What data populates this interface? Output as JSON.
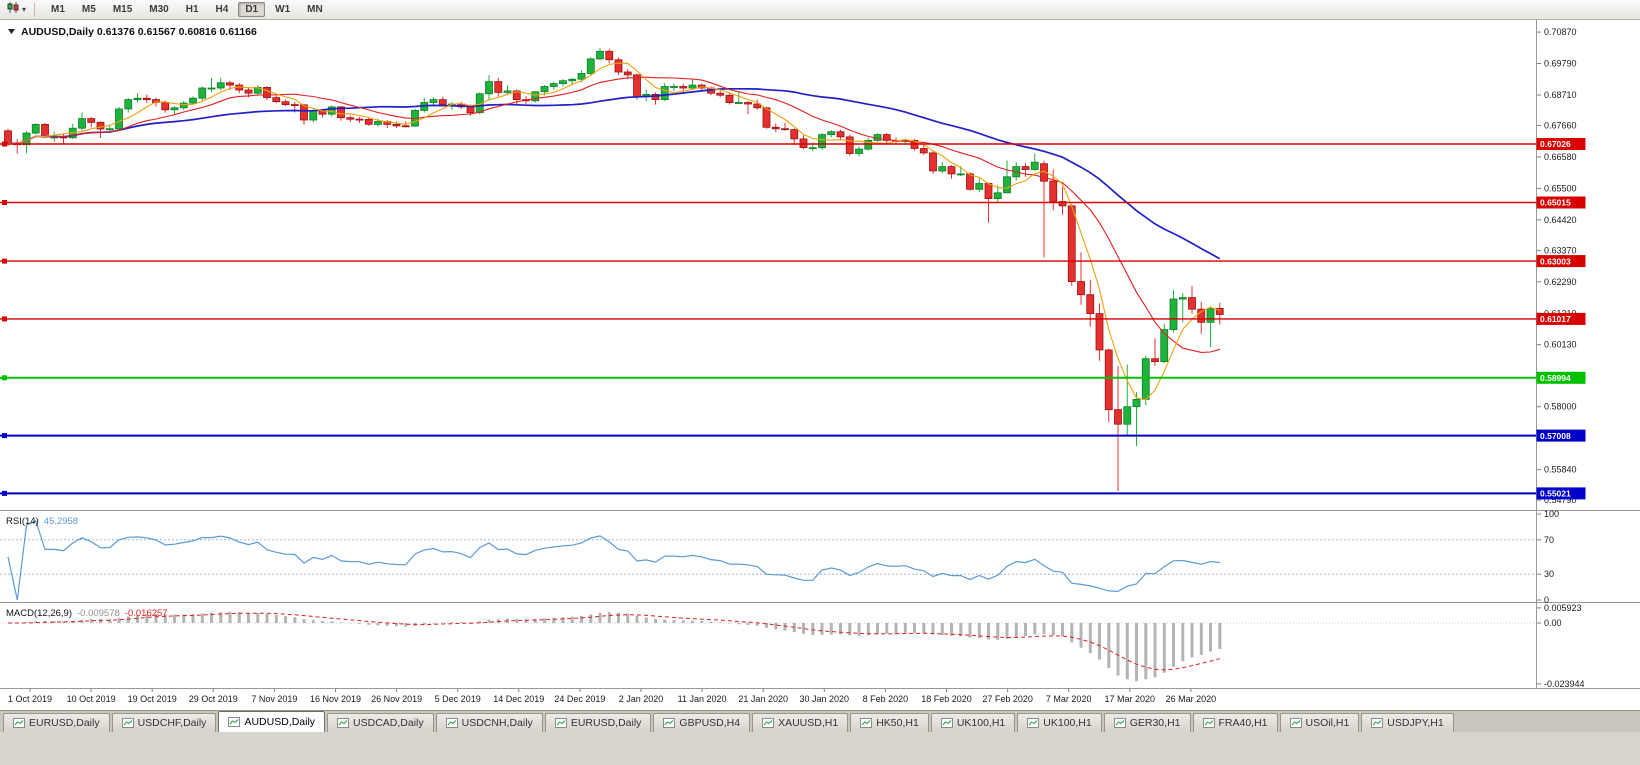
{
  "toolbar": {
    "chart_type_icon": "candlestick-chart-icon",
    "timeframes": [
      "M1",
      "M5",
      "M15",
      "M30",
      "H1",
      "H4",
      "D1",
      "W1",
      "MN"
    ],
    "active_timeframe": "D1"
  },
  "chart_header": {
    "dropdown_icon": "chart-dropdown-triangle",
    "symbol": "AUDUSD,Daily",
    "open": "0.61376",
    "high": "0.61567",
    "low": "0.60816",
    "close": "0.61166"
  },
  "price_axis": {
    "ticks": [
      "0.70870",
      "0.69790",
      "0.68710",
      "0.67660",
      "0.66580",
      "0.65500",
      "0.64420",
      "0.63370",
      "0.62290",
      "0.61210",
      "0.60130",
      "0.59080",
      "0.58000",
      "0.56920",
      "0.55840",
      "0.54790"
    ]
  },
  "hlines": [
    {
      "label": "0.67026",
      "value": 0.67026,
      "color": "#d80000",
      "width": 1.4
    },
    {
      "label": "0.65015",
      "value": 0.65015,
      "color": "#d80000",
      "width": 1.4
    },
    {
      "label": "0.63003",
      "value": 0.63003,
      "color": "#d80000",
      "width": 1.4
    },
    {
      "label": "0.61017",
      "value": 0.61017,
      "color": "#d80000",
      "width": 1.4
    },
    {
      "label": "0.58994",
      "value": 0.58994,
      "color": "#00c000",
      "width": 2
    },
    {
      "label": "0.57008",
      "value": 0.57008,
      "color": "#0000c8",
      "width": 2
    },
    {
      "label": "0.55021",
      "value": 0.55021,
      "color": "#0000c8",
      "width": 2
    }
  ],
  "indicators": {
    "rsi": {
      "name": "RSI(14)",
      "value": "45.2958",
      "period": 14,
      "color": "#5b9bd5",
      "levels": [
        70,
        30
      ],
      "scale": [
        "100",
        "70",
        "30",
        "0"
      ]
    },
    "macd": {
      "name": "MACD(12,26,9)",
      "values": [
        "-0.009578",
        "-0.016257"
      ],
      "fast": 12,
      "slow": 26,
      "signal": 9,
      "hist_color": "#b4b4b4",
      "signal_color": "#e02020",
      "scale": [
        "0.005923",
        "0.00",
        "-0.023944"
      ]
    }
  },
  "date_axis": {
    "labels": [
      "1 Oct 2019",
      "10 Oct 2019",
      "19 Oct 2019",
      "29 Oct 2019",
      "7 Nov 2019",
      "16 Nov 2019",
      "26 Nov 2019",
      "5 Dec 2019",
      "14 Dec 2019",
      "24 Dec 2019",
      "2 Jan 2020",
      "11 Jan 2020",
      "21 Jan 2020",
      "30 Jan 2020",
      "8 Feb 2020",
      "18 Feb 2020",
      "27 Feb 2020",
      "7 Mar 2020",
      "17 Mar 2020",
      "26 Mar 2020"
    ]
  },
  "tabs": {
    "active_index": 2,
    "items": [
      {
        "label": "EURUSD,Daily"
      },
      {
        "label": "USDCHF,Daily"
      },
      {
        "label": "AUDUSD,Daily"
      },
      {
        "label": "USDCAD,Daily"
      },
      {
        "label": "USDCNH,Daily"
      },
      {
        "label": "EURUSD,Daily"
      },
      {
        "label": "GBPUSD,H4"
      },
      {
        "label": "XAUUSD,H1"
      },
      {
        "label": "HK50,H1"
      },
      {
        "label": "UK100,H1"
      },
      {
        "label": "UK100,H1"
      },
      {
        "label": "GER30,H1"
      },
      {
        "label": "FRA40,H1"
      },
      {
        "label": "USOil,H1"
      },
      {
        "label": "USDJPY,H1"
      }
    ]
  },
  "chart_data": {
    "type": "candlestick",
    "symbol": "AUDUSD",
    "timeframe": "Daily",
    "ylim": [
      0.5452,
      0.7108
    ],
    "style": {
      "up_color": "#1fb33c",
      "up_border": "#0a7f28",
      "down_color": "#e53030",
      "down_border": "#a01010"
    },
    "moving_averages": [
      {
        "period": 34,
        "color": "#2020c8",
        "width": 1.7
      },
      {
        "period": 13,
        "color": "#e02020",
        "width": 1.1
      },
      {
        "period": 5,
        "color": "#f0a010",
        "width": 1.1
      }
    ],
    "ohlc": [
      [
        "2019-10-01",
        0.6748,
        0.6755,
        0.6695,
        0.6706
      ],
      [
        "2019-10-02",
        0.6706,
        0.6719,
        0.667,
        0.67
      ],
      [
        "2019-10-03",
        0.67,
        0.6747,
        0.6671,
        0.674
      ],
      [
        "2019-10-04",
        0.674,
        0.6774,
        0.6736,
        0.677
      ],
      [
        "2019-10-07",
        0.677,
        0.6775,
        0.6723,
        0.6727
      ],
      [
        "2019-10-08",
        0.6727,
        0.6745,
        0.671,
        0.6727
      ],
      [
        "2019-10-09",
        0.6727,
        0.6737,
        0.6701,
        0.6724
      ],
      [
        "2019-10-10",
        0.6724,
        0.6772,
        0.6719,
        0.6757
      ],
      [
        "2019-10-11",
        0.6757,
        0.6811,
        0.6748,
        0.679
      ],
      [
        "2019-10-14",
        0.679,
        0.6795,
        0.676,
        0.6777
      ],
      [
        "2019-10-15",
        0.6777,
        0.678,
        0.6724,
        0.6754
      ],
      [
        "2019-10-16",
        0.6754,
        0.677,
        0.6742,
        0.6755
      ],
      [
        "2019-10-17",
        0.6755,
        0.683,
        0.6751,
        0.6823
      ],
      [
        "2019-10-18",
        0.6823,
        0.686,
        0.681,
        0.6855
      ],
      [
        "2019-10-21",
        0.6855,
        0.6877,
        0.6845,
        0.686
      ],
      [
        "2019-10-22",
        0.686,
        0.6872,
        0.6843,
        0.6855
      ],
      [
        "2019-10-23",
        0.6855,
        0.6862,
        0.6831,
        0.6845
      ],
      [
        "2019-10-24",
        0.6845,
        0.6852,
        0.681,
        0.682
      ],
      [
        "2019-10-25",
        0.682,
        0.6832,
        0.6805,
        0.6827
      ],
      [
        "2019-10-28",
        0.6827,
        0.685,
        0.682,
        0.6843
      ],
      [
        "2019-10-29",
        0.6843,
        0.6866,
        0.6838,
        0.686
      ],
      [
        "2019-10-30",
        0.686,
        0.69,
        0.6851,
        0.6895
      ],
      [
        "2019-10-31",
        0.6895,
        0.693,
        0.688,
        0.6895
      ],
      [
        "2019-11-01",
        0.6895,
        0.693,
        0.6887,
        0.6913
      ],
      [
        "2019-11-04",
        0.6913,
        0.692,
        0.6888,
        0.6905
      ],
      [
        "2019-11-05",
        0.6905,
        0.6912,
        0.6877,
        0.6888
      ],
      [
        "2019-11-06",
        0.6888,
        0.6898,
        0.6863,
        0.6877
      ],
      [
        "2019-11-07",
        0.6877,
        0.6905,
        0.6867,
        0.6897
      ],
      [
        "2019-11-08",
        0.6897,
        0.6901,
        0.6853,
        0.6862
      ],
      [
        "2019-11-11",
        0.6862,
        0.687,
        0.6843,
        0.6848
      ],
      [
        "2019-11-12",
        0.6848,
        0.6855,
        0.6832,
        0.6838
      ],
      [
        "2019-11-13",
        0.6838,
        0.6847,
        0.6811,
        0.6837
      ],
      [
        "2019-11-14",
        0.6837,
        0.684,
        0.6769,
        0.6785
      ],
      [
        "2019-11-15",
        0.6785,
        0.6825,
        0.6777,
        0.6817
      ],
      [
        "2019-11-18",
        0.6817,
        0.682,
        0.6793,
        0.6805
      ],
      [
        "2019-11-19",
        0.6805,
        0.6835,
        0.6797,
        0.683
      ],
      [
        "2019-11-20",
        0.683,
        0.6833,
        0.6783,
        0.6793
      ],
      [
        "2019-11-21",
        0.6793,
        0.68,
        0.6777,
        0.6788
      ],
      [
        "2019-11-22",
        0.6788,
        0.6795,
        0.6775,
        0.6787
      ],
      [
        "2019-11-25",
        0.6787,
        0.6793,
        0.6765,
        0.677
      ],
      [
        "2019-11-26",
        0.677,
        0.679,
        0.6762,
        0.678
      ],
      [
        "2019-11-27",
        0.678,
        0.6785,
        0.6757,
        0.677
      ],
      [
        "2019-11-28",
        0.677,
        0.678,
        0.6758,
        0.6765
      ],
      [
        "2019-11-29",
        0.6765,
        0.678,
        0.676,
        0.6764
      ],
      [
        "2019-12-02",
        0.6764,
        0.6824,
        0.6762,
        0.6818
      ],
      [
        "2019-12-03",
        0.6818,
        0.6862,
        0.681,
        0.6845
      ],
      [
        "2019-12-04",
        0.6845,
        0.6863,
        0.6832,
        0.6855
      ],
      [
        "2019-12-05",
        0.6855,
        0.6865,
        0.6833,
        0.6838
      ],
      [
        "2019-12-06",
        0.6838,
        0.6848,
        0.682,
        0.684
      ],
      [
        "2019-12-09",
        0.684,
        0.6848,
        0.6823,
        0.683
      ],
      [
        "2019-12-10",
        0.683,
        0.6838,
        0.68,
        0.681
      ],
      [
        "2019-12-11",
        0.681,
        0.688,
        0.6805,
        0.6875
      ],
      [
        "2019-12-12",
        0.6875,
        0.6939,
        0.6855,
        0.6917
      ],
      [
        "2019-12-13",
        0.6917,
        0.693,
        0.6865,
        0.688
      ],
      [
        "2019-12-16",
        0.688,
        0.6905,
        0.687,
        0.6885
      ],
      [
        "2019-12-17",
        0.6885,
        0.689,
        0.6838,
        0.6855
      ],
      [
        "2019-12-18",
        0.6855,
        0.6867,
        0.684,
        0.6851
      ],
      [
        "2019-12-19",
        0.6851,
        0.6885,
        0.6845,
        0.6882
      ],
      [
        "2019-12-20",
        0.6882,
        0.6905,
        0.687,
        0.69
      ],
      [
        "2019-12-23",
        0.69,
        0.6917,
        0.689,
        0.691
      ],
      [
        "2019-12-24",
        0.691,
        0.6925,
        0.69,
        0.692
      ],
      [
        "2019-12-26",
        0.692,
        0.693,
        0.6905,
        0.6925
      ],
      [
        "2019-12-27",
        0.6925,
        0.6955,
        0.6915,
        0.6945
      ],
      [
        "2019-12-30",
        0.6945,
        0.7,
        0.694,
        0.6995
      ],
      [
        "2019-12-31",
        0.6995,
        0.7032,
        0.699,
        0.7021
      ],
      [
        "2020-01-02",
        0.7021,
        0.703,
        0.698,
        0.6992
      ],
      [
        "2020-01-03",
        0.6992,
        0.7,
        0.694,
        0.695
      ],
      [
        "2020-01-06",
        0.695,
        0.696,
        0.6925,
        0.694
      ],
      [
        "2020-01-07",
        0.694,
        0.6945,
        0.6855,
        0.6865
      ],
      [
        "2020-01-08",
        0.6865,
        0.689,
        0.685,
        0.6873
      ],
      [
        "2020-01-09",
        0.6873,
        0.688,
        0.6838,
        0.6855
      ],
      [
        "2020-01-10",
        0.6855,
        0.6912,
        0.685,
        0.69
      ],
      [
        "2020-01-13",
        0.69,
        0.691,
        0.6885,
        0.69
      ],
      [
        "2020-01-14",
        0.69,
        0.691,
        0.688,
        0.6895
      ],
      [
        "2020-01-15",
        0.6895,
        0.6925,
        0.6888,
        0.6905
      ],
      [
        "2020-01-16",
        0.6905,
        0.691,
        0.6885,
        0.6895
      ],
      [
        "2020-01-17",
        0.6895,
        0.69,
        0.687,
        0.6877
      ],
      [
        "2020-01-20",
        0.6877,
        0.6885,
        0.6863,
        0.687
      ],
      [
        "2020-01-21",
        0.687,
        0.6875,
        0.6838,
        0.6845
      ],
      [
        "2020-01-22",
        0.6845,
        0.688,
        0.684,
        0.6845
      ],
      [
        "2020-01-23",
        0.6845,
        0.685,
        0.6805,
        0.684
      ],
      [
        "2020-01-24",
        0.684,
        0.6855,
        0.682,
        0.6827
      ],
      [
        "2020-01-27",
        0.6827,
        0.683,
        0.6755,
        0.676
      ],
      [
        "2020-01-28",
        0.676,
        0.6773,
        0.6743,
        0.6755
      ],
      [
        "2020-01-29",
        0.6755,
        0.6775,
        0.6748,
        0.6752
      ],
      [
        "2020-01-30",
        0.6752,
        0.6757,
        0.67,
        0.672
      ],
      [
        "2020-01-31",
        0.672,
        0.6733,
        0.6685,
        0.669
      ],
      [
        "2020-02-03",
        0.669,
        0.6708,
        0.6678,
        0.669
      ],
      [
        "2020-02-04",
        0.669,
        0.674,
        0.6682,
        0.6735
      ],
      [
        "2020-02-05",
        0.6735,
        0.675,
        0.6725,
        0.6745
      ],
      [
        "2020-02-06",
        0.6745,
        0.6752,
        0.6715,
        0.6727
      ],
      [
        "2020-02-07",
        0.6727,
        0.6735,
        0.6663,
        0.667
      ],
      [
        "2020-02-10",
        0.667,
        0.6695,
        0.666,
        0.6685
      ],
      [
        "2020-02-11",
        0.6685,
        0.6725,
        0.668,
        0.6715
      ],
      [
        "2020-02-12",
        0.6715,
        0.674,
        0.671,
        0.6735
      ],
      [
        "2020-02-13",
        0.6735,
        0.674,
        0.67,
        0.6715
      ],
      [
        "2020-02-14",
        0.6715,
        0.6725,
        0.67,
        0.6712
      ],
      [
        "2020-02-17",
        0.6712,
        0.672,
        0.67,
        0.6715
      ],
      [
        "2020-02-18",
        0.6715,
        0.672,
        0.668,
        0.6687
      ],
      [
        "2020-02-19",
        0.6687,
        0.67,
        0.6665,
        0.6672
      ],
      [
        "2020-02-20",
        0.6672,
        0.6677,
        0.66,
        0.661
      ],
      [
        "2020-02-21",
        0.661,
        0.664,
        0.6603,
        0.6625
      ],
      [
        "2020-02-24",
        0.6625,
        0.663,
        0.6583,
        0.66
      ],
      [
        "2020-02-25",
        0.66,
        0.6627,
        0.6592,
        0.66
      ],
      [
        "2020-02-26",
        0.66,
        0.6606,
        0.6542,
        0.6547
      ],
      [
        "2020-02-27",
        0.6547,
        0.6585,
        0.6537,
        0.6567
      ],
      [
        "2020-02-28",
        0.6567,
        0.657,
        0.6433,
        0.6515
      ],
      [
        "2020-03-02",
        0.6515,
        0.656,
        0.6505,
        0.6535
      ],
      [
        "2020-03-03",
        0.6535,
        0.6646,
        0.6533,
        0.659
      ],
      [
        "2020-03-04",
        0.659,
        0.664,
        0.6577,
        0.6625
      ],
      [
        "2020-03-05",
        0.6625,
        0.6637,
        0.659,
        0.6615
      ],
      [
        "2020-03-06",
        0.6615,
        0.667,
        0.661,
        0.664
      ],
      [
        "2020-03-09",
        0.6635,
        0.6645,
        0.6313,
        0.6575
      ],
      [
        "2020-03-10",
        0.6575,
        0.6615,
        0.6475,
        0.6505
      ],
      [
        "2020-03-11",
        0.6505,
        0.6555,
        0.646,
        0.649
      ],
      [
        "2020-03-12",
        0.649,
        0.6495,
        0.6215,
        0.623
      ],
      [
        "2020-03-13",
        0.623,
        0.633,
        0.615,
        0.6185
      ],
      [
        "2020-03-16",
        0.6185,
        0.6235,
        0.6075,
        0.612
      ],
      [
        "2020-03-17",
        0.612,
        0.6155,
        0.5958,
        0.5995
      ],
      [
        "2020-03-18",
        0.5995,
        0.6,
        0.5747,
        0.579
      ],
      [
        "2020-03-19",
        0.579,
        0.594,
        0.551,
        0.574
      ],
      [
        "2020-03-20",
        0.574,
        0.5945,
        0.57,
        0.58
      ],
      [
        "2020-03-23",
        0.58,
        0.585,
        0.5665,
        0.5825
      ],
      [
        "2020-03-24",
        0.5825,
        0.5975,
        0.5805,
        0.5965
      ],
      [
        "2020-03-25",
        0.5965,
        0.6035,
        0.594,
        0.5955
      ],
      [
        "2020-03-26",
        0.5955,
        0.6085,
        0.595,
        0.6065
      ],
      [
        "2020-03-27",
        0.6065,
        0.62,
        0.6055,
        0.617
      ],
      [
        "2020-03-30",
        0.617,
        0.619,
        0.609,
        0.6175
      ],
      [
        "2020-03-31",
        0.6175,
        0.6215,
        0.612,
        0.6135
      ],
      [
        "2020-04-01",
        0.6135,
        0.616,
        0.605,
        0.609
      ],
      [
        "2020-04-02",
        0.609,
        0.6145,
        0.6005,
        0.6137
      ],
      [
        "2020-04-03",
        0.61376,
        0.61567,
        0.60816,
        0.61166
      ]
    ]
  }
}
